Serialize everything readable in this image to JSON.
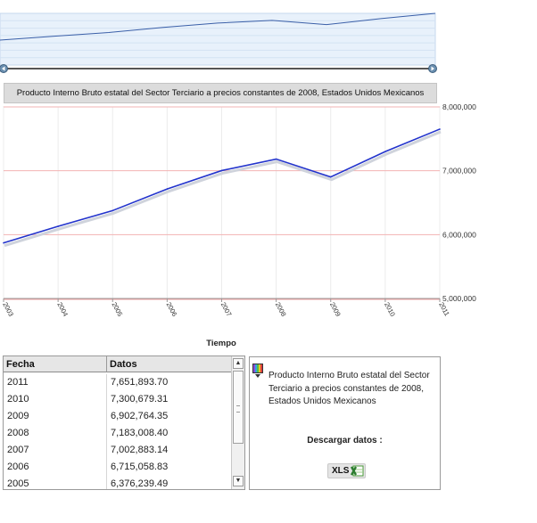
{
  "chart_data": {
    "type": "line",
    "title": "Producto Interno Bruto estatal del Sector Terciario a precios constantes de 2008, Estados Unidos Mexicanos",
    "xlabel": "Tiempo",
    "ylabel": "",
    "x": [
      "2003",
      "2004",
      "2005",
      "2006",
      "2007",
      "2008",
      "2009",
      "2010",
      "2011"
    ],
    "series": [
      {
        "values": [
          5870000,
          6130000,
          6376239.49,
          6715058.83,
          7002883.14,
          7183008.4,
          6902764.35,
          7300679.31,
          7651893.7
        ]
      }
    ],
    "yticks": [
      "8,000,000",
      "7,000,000",
      "6,000,000",
      "5,000,000"
    ],
    "ylim": [
      5000000,
      8000000
    ],
    "grid": true,
    "line_color": "#2233cc",
    "grid_color": "#f2b3b3"
  },
  "table": {
    "headers": [
      "Fecha",
      "Datos"
    ],
    "rows": [
      [
        "2011",
        "7,651,893.70"
      ],
      [
        "2010",
        "7,300,679.31"
      ],
      [
        "2009",
        "6,902,764.35"
      ],
      [
        "2008",
        "7,183,008.40"
      ],
      [
        "2007",
        "7,002,883.14"
      ],
      [
        "2006",
        "6,715,058.83"
      ],
      [
        "2005",
        "6,376,239.49"
      ]
    ]
  },
  "info": {
    "description": "Producto Interno Bruto estatal del Sector Terciario a precios constantes de 2008, Estados Unidos Mexicanos",
    "download_label": "Descargar datos :",
    "xls_label": "XLS"
  }
}
